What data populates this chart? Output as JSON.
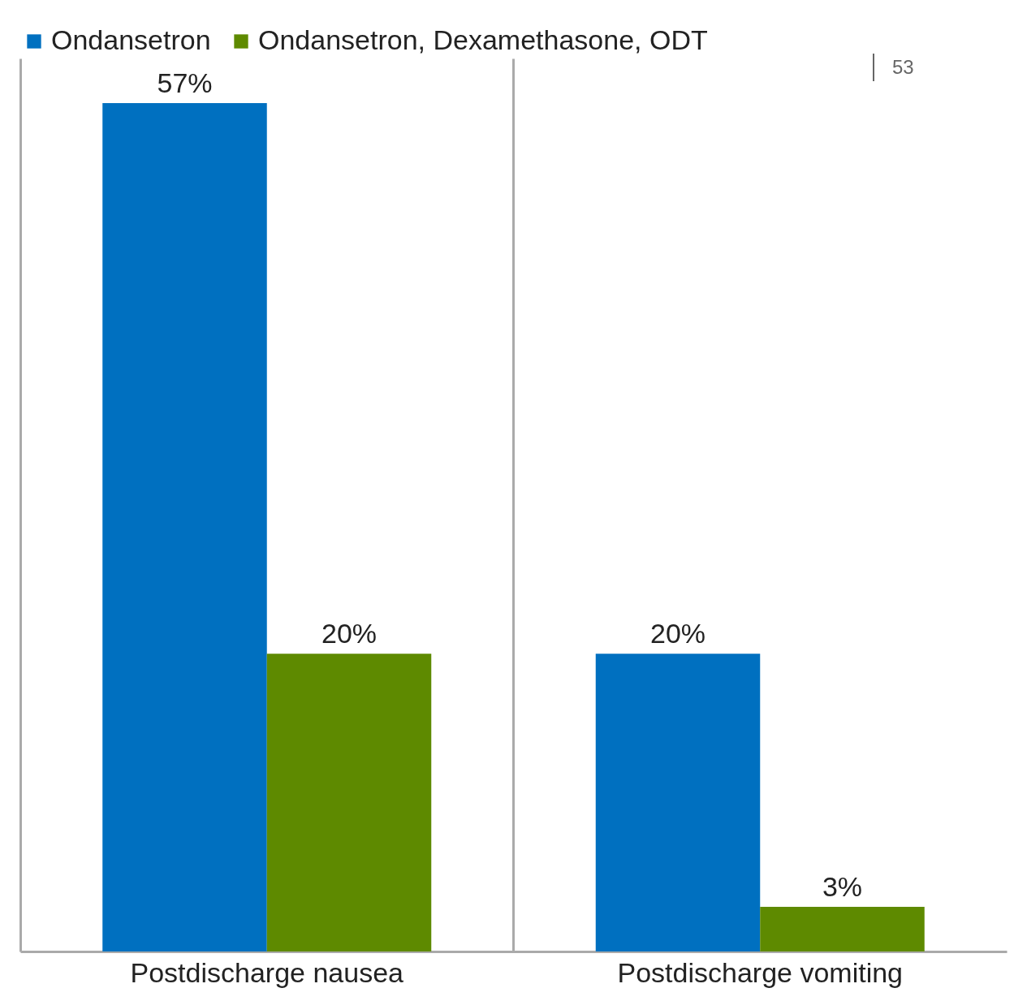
{
  "chart_data": {
    "type": "bar",
    "categories": [
      "Postdischarge nausea",
      "Postdischarge vomiting"
    ],
    "series": [
      {
        "name": "Ondansetron",
        "color": "#0070c0",
        "values": [
          57,
          20
        ],
        "value_labels": [
          "57%",
          "20%"
        ]
      },
      {
        "name": "Ondansetron, Dexamethasone, ODT",
        "color": "#5e8a00",
        "values": [
          20,
          3
        ],
        "value_labels": [
          "20%",
          "3%"
        ]
      }
    ],
    "ylim": [
      0,
      60
    ],
    "grid": "x",
    "legend": "top",
    "annotations": [
      "53"
    ]
  }
}
